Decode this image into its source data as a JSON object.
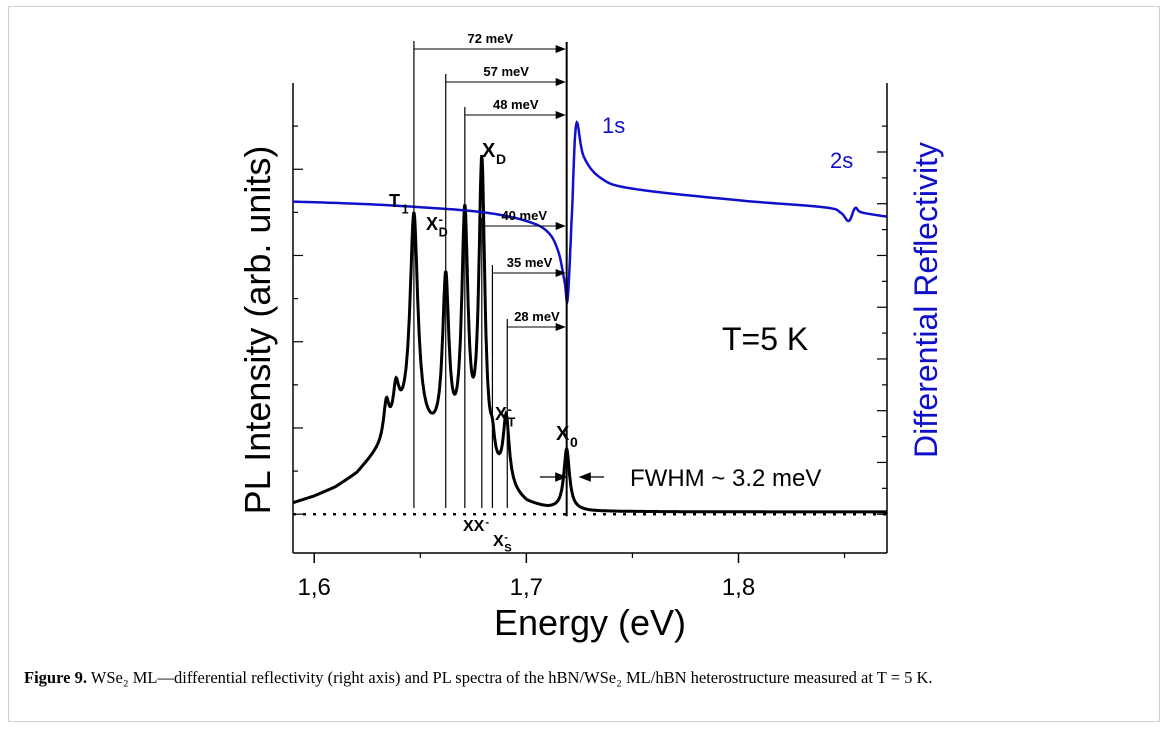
{
  "caption": {
    "label": "Figure 9.",
    "text": " WSe₂ ML—differential reflectivity (right axis) and PL spectra of the hBN/WSe₂ ML/hBN heterostructure measured at T = 5 K."
  },
  "chart_data": {
    "type": "line",
    "xlabel": "Energy (eV)",
    "ylabel_left": "PL Intensity (arb. units)",
    "ylabel_right": "Differential Reflectivity",
    "xlim": [
      1.59,
      1.87
    ],
    "ylim_left": [
      -0.09,
      1.0
    ],
    "ylim_right": [
      -0.09,
      1.0
    ],
    "xticks": [
      1.6,
      1.7,
      1.8
    ],
    "xtick_labels": [
      "1,6",
      "1,7",
      "1,8"
    ],
    "colors": {
      "pl": "#000000",
      "reflectivity": "#1010cc"
    },
    "annotation_temperature": "T=5 K",
    "annotation_fwhm": "FWHM ~ 3.2 meV",
    "reflectivity_labels": [
      "1s",
      "2s"
    ],
    "zero_reference": 1.719,
    "energy_differences": [
      {
        "label": "72 meV",
        "energy": 1.647
      },
      {
        "label": "57 meV",
        "energy": 1.662
      },
      {
        "label": "48 meV",
        "energy": 1.671
      },
      {
        "label": "40 meV",
        "energy": 1.679
      },
      {
        "label": "35 meV",
        "energy": 1.684
      },
      {
        "label": "28 meV",
        "energy": 1.691
      }
    ],
    "peak_labels": [
      {
        "base": "T",
        "sub": "1",
        "sup": ""
      },
      {
        "base": "X",
        "sub": "D",
        "sup": "-"
      },
      {
        "base": "X",
        "sub": "D",
        "sup": ""
      },
      {
        "base": "X",
        "sub": "T",
        "sup": "-"
      },
      {
        "base": "X",
        "sub": "0",
        "sup": ""
      },
      {
        "base": "XX",
        "sub": "",
        "sup": "-"
      },
      {
        "base": "X",
        "sub": "S",
        "sup": "-"
      }
    ],
    "pl_series": {
      "name": "PL",
      "baseline": 0.0,
      "background": [
        [
          1.59,
          0.025
        ],
        [
          1.6,
          0.04
        ],
        [
          1.61,
          0.06
        ],
        [
          1.62,
          0.09
        ],
        [
          1.63,
          0.14
        ],
        [
          1.64,
          0.2
        ],
        [
          1.65,
          0.18
        ],
        [
          1.66,
          0.15
        ],
        [
          1.67,
          0.12
        ],
        [
          1.68,
          0.09
        ],
        [
          1.69,
          0.05
        ],
        [
          1.7,
          0.02
        ],
        [
          1.71,
          0.01
        ],
        [
          1.73,
          0.005
        ],
        [
          1.87,
          0.005
        ]
      ],
      "peaks": [
        {
          "center": 1.634,
          "height": 0.08,
          "width": 0.0015
        },
        {
          "center": 1.6385,
          "height": 0.08,
          "width": 0.0015
        },
        {
          "center": 1.647,
          "height": 0.5,
          "width": 0.0022
        },
        {
          "center": 1.662,
          "height": 0.38,
          "width": 0.0018
        },
        {
          "center": 1.671,
          "height": 0.55,
          "width": 0.0018
        },
        {
          "center": 1.679,
          "height": 0.7,
          "width": 0.0017
        },
        {
          "center": 1.684,
          "height": 0.05,
          "width": 0.0012
        },
        {
          "center": 1.6905,
          "height": 0.16,
          "width": 0.0017
        },
        {
          "center": 1.719,
          "height": 0.14,
          "width": 0.0016
        }
      ]
    },
    "reflectivity_series": {
      "name": "Differential Reflectivity",
      "points": [
        [
          1.59,
          0.725
        ],
        [
          1.62,
          0.72
        ],
        [
          1.65,
          0.712
        ],
        [
          1.68,
          0.7
        ],
        [
          1.7,
          0.68
        ],
        [
          1.71,
          0.655
        ],
        [
          1.715,
          0.61
        ],
        [
          1.718,
          0.54
        ],
        [
          1.7195,
          0.5
        ],
        [
          1.7215,
          0.7
        ],
        [
          1.7235,
          0.905
        ],
        [
          1.727,
          0.83
        ],
        [
          1.735,
          0.78
        ],
        [
          1.75,
          0.755
        ],
        [
          1.8,
          0.728
        ],
        [
          1.84,
          0.712
        ],
        [
          1.848,
          0.7
        ],
        [
          1.852,
          0.68
        ],
        [
          1.855,
          0.71
        ],
        [
          1.858,
          0.7
        ],
        [
          1.87,
          0.69
        ]
      ]
    }
  }
}
